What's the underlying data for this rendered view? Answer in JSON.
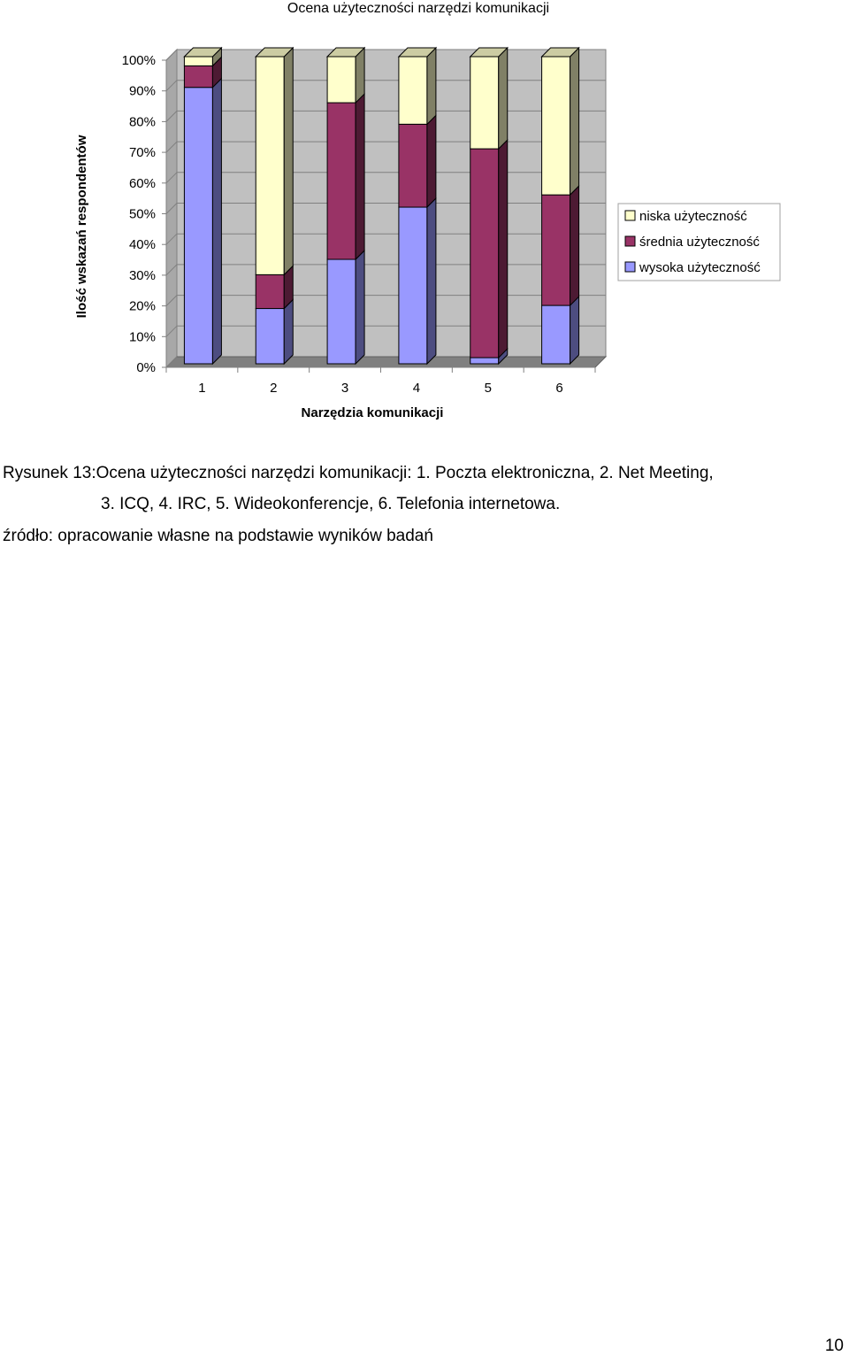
{
  "chart_data": {
    "type": "bar",
    "stacked": true,
    "three_d": true,
    "title": "Ocena  użyteczności narzędzi komunikacji",
    "xlabel": "Narzędzia komunikacji",
    "ylabel": "Ilość wskazań respondentów",
    "categories": [
      "1",
      "2",
      "3",
      "4",
      "5",
      "6"
    ],
    "ylim": [
      0,
      100
    ],
    "yticks": [
      "0%",
      "10%",
      "20%",
      "30%",
      "40%",
      "50%",
      "60%",
      "70%",
      "80%",
      "90%",
      "100%"
    ],
    "grid": true,
    "legend_position": "right",
    "series": [
      {
        "name": "wysoka użyteczność",
        "color": "#9999FF",
        "values": [
          90,
          18,
          34,
          51,
          2,
          19
        ]
      },
      {
        "name": "średnia użyteczność",
        "color": "#993366",
        "values": [
          7,
          11,
          51,
          27,
          68,
          36
        ]
      },
      {
        "name": "niska użyteczność",
        "color": "#FFFFCC",
        "values": [
          3,
          71,
          15,
          22,
          30,
          45
        ]
      }
    ],
    "legend_order": [
      "niska użyteczność",
      "średnia użyteczność",
      "wysoka użyteczność"
    ],
    "colors": {
      "wall": "#C0C0C0",
      "floor": "#808080"
    }
  },
  "caption": {
    "line1": "Rysunek 13:Ocena użyteczności narzędzi komunikacji: 1. Poczta elektroniczna, 2. Net Meeting,",
    "line2": "3. ICQ, 4. IRC, 5. Wideokonferencje, 6. Telefonia internetowa.",
    "source": "źródło: opracowanie własne na podstawie wyników badań"
  },
  "page_number": "10"
}
